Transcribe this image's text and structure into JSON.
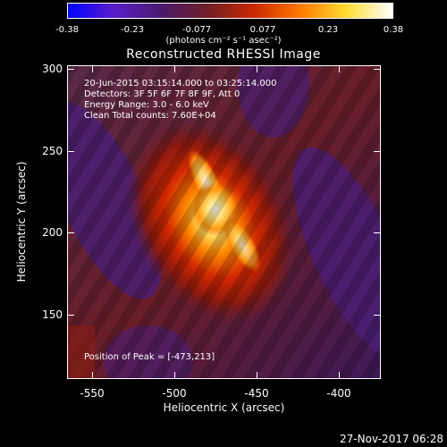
{
  "colorbar": {
    "ticks": [
      "-0.38",
      "-0.23",
      "-0.077",
      "0.077",
      "0.23",
      "0.38"
    ],
    "units": "(photons cm⁻² s⁻¹ asec⁻²)",
    "colors": [
      "#0000ff",
      "#5a1ec8",
      "#4b1a6e",
      "#6e1e28",
      "#c82800",
      "#ff7800",
      "#ffdc32",
      "#ffffff"
    ]
  },
  "title": "Reconstructed RHESSI Image",
  "info": {
    "line1": "20-Jun-2015 03:15:14.000 to 03:25:14.000",
    "line2": "Detectors: 3F 5F 6F 7F 8F 9F, Att 0",
    "line3": "Energy Range: 3.0 - 6.0 keV",
    "line4": "Clean     Total counts: 7.60E+04"
  },
  "axes": {
    "xlabel": "Heliocentric X (arcsec)",
    "ylabel": "Heliocentric Y (arcsec)",
    "xticks": [
      "-550",
      "-500",
      "-450",
      "-400"
    ],
    "yticks": [
      "300",
      "250",
      "200",
      "150"
    ]
  },
  "peak": "Position of Peak = [-473,213]",
  "date_stamp": "27-Nov-2017 06:28"
}
